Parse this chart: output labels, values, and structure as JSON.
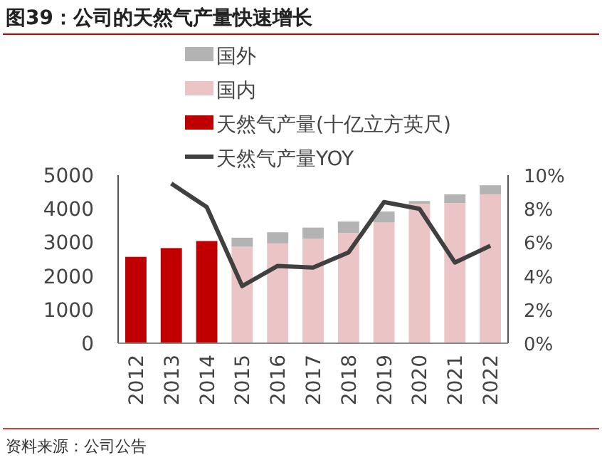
{
  "chart_data": {
    "type": "bar",
    "title": "图39：公司的天然气产量快速增长",
    "stacked": true,
    "categories": [
      "2012",
      "2013",
      "2014",
      "2015",
      "2016",
      "2017",
      "2018",
      "2019",
      "2020",
      "2021",
      "2022"
    ],
    "series": [
      {
        "name": "天然气产量(十亿立方英尺)",
        "color": "#c00000",
        "values": [
          2570,
          2830,
          3040,
          null,
          null,
          null,
          null,
          null,
          null,
          null,
          null
        ]
      },
      {
        "name": "国内",
        "color": "#ebc5c5",
        "values": [
          null,
          null,
          null,
          2870,
          2970,
          3110,
          3280,
          3590,
          4150,
          4170,
          4430
        ]
      },
      {
        "name": "国外",
        "color": "#b3b3b3",
        "values": [
          null,
          null,
          null,
          270,
          330,
          330,
          340,
          330,
          80,
          260,
          270
        ]
      },
      {
        "name": "天然气产量YOY",
        "type": "line",
        "axis": "y2",
        "color": "#404040",
        "values": [
          null,
          9.5,
          8.1,
          3.4,
          4.6,
          4.5,
          5.4,
          8.4,
          8.0,
          4.8,
          5.8
        ]
      }
    ],
    "ylim": [
      0,
      5000
    ],
    "yticks": [
      0,
      1000,
      2000,
      3000,
      4000,
      5000
    ],
    "y2lim": [
      0,
      10
    ],
    "y2ticks": [
      {
        "value": 0,
        "label": "0%"
      },
      {
        "value": 2,
        "label": "2%"
      },
      {
        "value": 4,
        "label": "4%"
      },
      {
        "value": 6,
        "label": "6%"
      },
      {
        "value": 8,
        "label": "8%"
      },
      {
        "value": 10,
        "label": "10%"
      }
    ],
    "legend": "top",
    "grid": false,
    "annotations": [
      "资料来源：公司公告"
    ]
  }
}
